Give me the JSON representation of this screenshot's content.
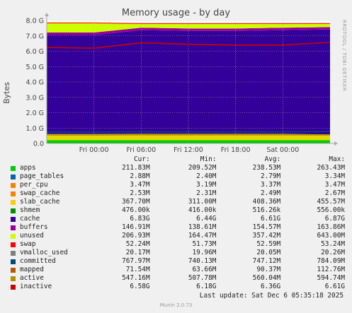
{
  "chart_data": {
    "type": "area",
    "title": "Memory usage - by day",
    "ylabel": "Bytes",
    "side_label": "RRDTOOL / TOBI OETIKER",
    "ylim": [
      0,
      8
    ],
    "y_unit": "G",
    "y_ticks": [
      "0.0",
      "1.0 G",
      "2.0 G",
      "3.0 G",
      "4.0 G",
      "5.0 G",
      "6.0 G",
      "7.0 G",
      "8.0 G"
    ],
    "x_ticks": [
      "Fri 00:00",
      "Fri 06:00",
      "Fri 12:00",
      "Fri 18:00",
      "Sat 00:00"
    ],
    "x_hours": [
      -6,
      0,
      6,
      12,
      18,
      24,
      30
    ],
    "stack_series": [
      {
        "name": "apps",
        "color": "#00cc00",
        "values": [
          0.21,
          0.21,
          0.21,
          0.21,
          0.21,
          0.21,
          0.21
        ]
      },
      {
        "name": "page_tables",
        "color": "#0066b3",
        "values": [
          0.003,
          0.003,
          0.003,
          0.003,
          0.003,
          0.003,
          0.003
        ]
      },
      {
        "name": "per_cpu",
        "color": "#ff8000",
        "values": [
          0.003,
          0.003,
          0.003,
          0.003,
          0.003,
          0.003,
          0.003
        ]
      },
      {
        "name": "swap_cache",
        "color": "#ffcc00",
        "values": [
          0.002,
          0.002,
          0.002,
          0.002,
          0.002,
          0.002,
          0.002
        ]
      },
      {
        "name": "slab_cache",
        "color": "#e6d900",
        "values": [
          0.39,
          0.39,
          0.4,
          0.4,
          0.4,
          0.4,
          0.37
        ]
      },
      {
        "name": "shmem",
        "color": "#330099",
        "values": [
          0.0005,
          0.0005,
          0.0005,
          0.0005,
          0.0005,
          0.0005,
          0.0005
        ]
      },
      {
        "name": "cache",
        "color": "#330099",
        "values": [
          6.45,
          6.45,
          6.75,
          6.7,
          6.7,
          6.75,
          6.83
        ]
      },
      {
        "name": "buffers",
        "color": "#990099",
        "values": [
          0.16,
          0.16,
          0.16,
          0.16,
          0.16,
          0.16,
          0.15
        ]
      },
      {
        "name": "unused",
        "color": "#ccff00",
        "values": [
          0.6,
          0.6,
          0.25,
          0.3,
          0.3,
          0.25,
          0.21
        ]
      },
      {
        "name": "swap",
        "color": "#ff0000",
        "values": [
          0.05,
          0.05,
          0.05,
          0.05,
          0.05,
          0.05,
          0.05
        ]
      }
    ],
    "line_series": [
      {
        "name": "committed",
        "color": "#00487d",
        "values": [
          0.74,
          0.74,
          0.76,
          0.75,
          0.75,
          0.75,
          0.77
        ]
      },
      {
        "name": "active",
        "color": "#b38f00",
        "values": [
          0.55,
          0.55,
          0.56,
          0.56,
          0.56,
          0.56,
          0.55
        ]
      },
      {
        "name": "inactive",
        "color": "#cc0000",
        "values": [
          6.25,
          6.2,
          6.55,
          6.45,
          6.4,
          6.4,
          6.58
        ]
      }
    ]
  },
  "legend": {
    "headers": {
      "cur": "Cur:",
      "min": "Min:",
      "avg": "Avg:",
      "max": "Max:"
    },
    "rows": [
      {
        "name": "apps",
        "color": "#00cc00",
        "cur": "211.83M",
        "min": "209.52M",
        "avg": "238.53M",
        "max": "263.43M"
      },
      {
        "name": "page_tables",
        "color": "#0066b3",
        "cur": "2.88M",
        "min": "2.40M",
        "avg": "2.79M",
        "max": "3.34M"
      },
      {
        "name": "per_cpu",
        "color": "#ff8000",
        "cur": "3.47M",
        "min": "3.19M",
        "avg": "3.37M",
        "max": "3.47M"
      },
      {
        "name": "swap_cache",
        "color": "#ff8000",
        "cur": "2.53M",
        "min": "2.31M",
        "avg": "2.49M",
        "max": "2.67M"
      },
      {
        "name": "slab_cache",
        "color": "#ffcc00",
        "cur": "367.70M",
        "min": "311.00M",
        "avg": "408.36M",
        "max": "455.57M"
      },
      {
        "name": "shmem",
        "color": "#008f00",
        "cur": "476.00k",
        "min": "416.00k",
        "avg": "516.26k",
        "max": "556.00k"
      },
      {
        "name": "cache",
        "color": "#330099",
        "cur": "6.83G",
        "min": "6.44G",
        "avg": "6.61G",
        "max": "6.87G"
      },
      {
        "name": "buffers",
        "color": "#990099",
        "cur": "146.91M",
        "min": "138.61M",
        "avg": "154.57M",
        "max": "163.86M"
      },
      {
        "name": "unused",
        "color": "#ccff00",
        "cur": "206.93M",
        "min": "164.47M",
        "avg": "357.42M",
        "max": "643.00M"
      },
      {
        "name": "swap",
        "color": "#ff0000",
        "cur": "52.24M",
        "min": "51.73M",
        "avg": "52.59M",
        "max": "53.24M"
      },
      {
        "name": "vmalloc_used",
        "color": "#808080",
        "cur": "20.17M",
        "min": "19.96M",
        "avg": "20.05M",
        "max": "20.26M"
      },
      {
        "name": "committed",
        "color": "#00487d",
        "cur": "767.97M",
        "min": "740.13M",
        "avg": "747.12M",
        "max": "784.09M"
      },
      {
        "name": "mapped",
        "color": "#b35a00",
        "cur": "71.54M",
        "min": "63.66M",
        "avg": "90.37M",
        "max": "112.76M"
      },
      {
        "name": "active",
        "color": "#b38f00",
        "cur": "547.16M",
        "min": "507.78M",
        "avg": "560.04M",
        "max": "594.74M"
      },
      {
        "name": "inactive",
        "color": "#cc0000",
        "cur": "6.58G",
        "min": "6.18G",
        "avg": "6.36G",
        "max": "6.61G"
      }
    ]
  },
  "footer": {
    "last_update": "Last update: Sat Dec  6 05:35:18 2025",
    "munin": "Munin 2.0.73"
  }
}
